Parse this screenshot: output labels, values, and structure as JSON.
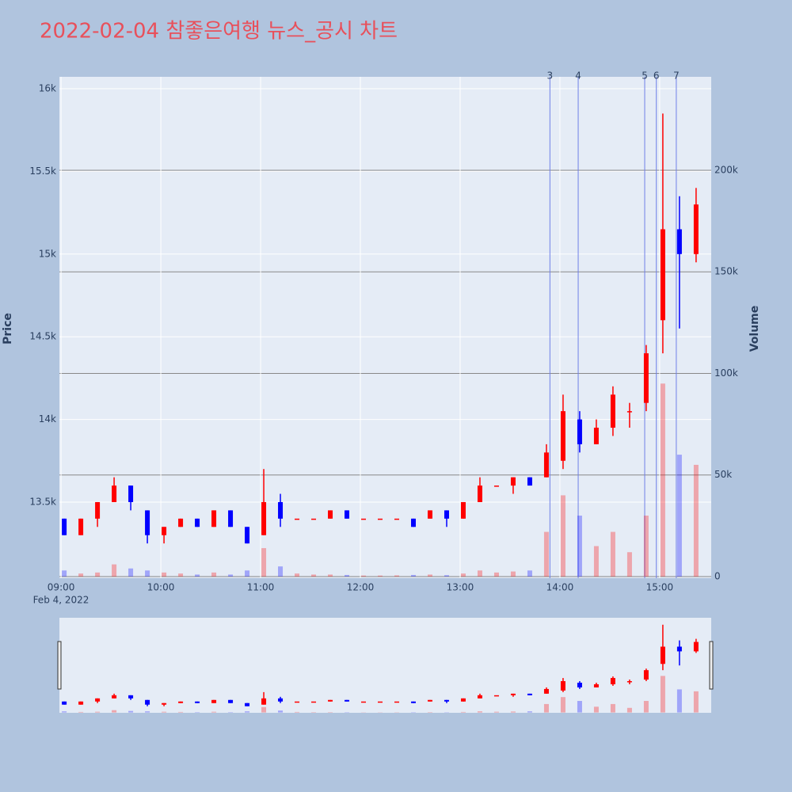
{
  "chart_data": {
    "type": "candlestick",
    "title": "2022-02-04 참좋은여행 뉴스_공시 차트",
    "y_label": "Price",
    "y2_label": "Volume",
    "x_date_label": "Feb 4, 2022",
    "x": [
      "09:00",
      "09:10",
      "09:20",
      "09:30",
      "09:40",
      "09:50",
      "10:00",
      "10:10",
      "10:20",
      "10:30",
      "10:40",
      "10:50",
      "11:00",
      "11:10",
      "11:20",
      "11:30",
      "11:40",
      "11:50",
      "12:00",
      "12:10",
      "12:20",
      "12:30",
      "12:40",
      "12:50",
      "13:00",
      "13:10",
      "13:20",
      "13:30",
      "13:40",
      "13:50",
      "14:00",
      "14:10",
      "14:20",
      "14:30",
      "14:40",
      "14:50",
      "15:00",
      "15:10",
      "15:20"
    ],
    "open": [
      13400,
      13300,
      13400,
      13500,
      13600,
      13450,
      13300,
      13350,
      13400,
      13350,
      13450,
      13350,
      13300,
      13500,
      13400,
      13400,
      13400,
      13450,
      13400,
      13400,
      13400,
      13400,
      13400,
      13450,
      13400,
      13500,
      13600,
      13600,
      13650,
      13650,
      13750,
      14000,
      13850,
      13950,
      14050,
      14100,
      14600,
      15150,
      15000
    ],
    "high": [
      13400,
      13400,
      13500,
      13650,
      13600,
      13450,
      13350,
      13400,
      13400,
      13450,
      13450,
      13350,
      13700,
      13550,
      13400,
      13400,
      13450,
      13450,
      13400,
      13400,
      13400,
      13400,
      13450,
      13450,
      13500,
      13650,
      13600,
      13650,
      13650,
      13850,
      14150,
      14050,
      14000,
      14200,
      14100,
      14450,
      15850,
      15350,
      15400
    ],
    "low": [
      13300,
      13300,
      13350,
      13500,
      13450,
      13250,
      13250,
      13350,
      13350,
      13350,
      13350,
      13250,
      13300,
      13350,
      13400,
      13400,
      13400,
      13400,
      13400,
      13400,
      13400,
      13350,
      13400,
      13350,
      13400,
      13500,
      13600,
      13550,
      13600,
      13650,
      13700,
      13800,
      13850,
      13900,
      13950,
      14050,
      14400,
      14550,
      14950
    ],
    "close": [
      13300,
      13400,
      13500,
      13600,
      13500,
      13300,
      13350,
      13400,
      13350,
      13450,
      13350,
      13250,
      13500,
      13400,
      13400,
      13400,
      13450,
      13400,
      13400,
      13400,
      13400,
      13350,
      13450,
      13400,
      13500,
      13600,
      13600,
      13650,
      13600,
      13800,
      14050,
      13850,
      13950,
      14150,
      14050,
      14400,
      15150,
      15000,
      15300
    ],
    "volume": [
      3000,
      1500,
      2000,
      6000,
      4000,
      3000,
      2000,
      1500,
      1000,
      2000,
      1000,
      3000,
      14000,
      5000,
      1500,
      1000,
      1000,
      800,
      500,
      500,
      600,
      800,
      1000,
      700,
      1500,
      3000,
      2000,
      2500,
      3000,
      22000,
      40000,
      30000,
      15000,
      22000,
      12000,
      30000,
      95000,
      60000,
      55000
    ],
    "increasing_color": "#ff0000",
    "decreasing_color": "#0000ff",
    "news": [
      {
        "x": "13:54",
        "label": "3"
      },
      {
        "x": "14:11",
        "label": "4"
      },
      {
        "x": "14:51",
        "label": "5"
      },
      {
        "x": "14:58",
        "label": "6"
      },
      {
        "x": "15:10",
        "label": "7"
      }
    ],
    "xlim": [
      "08:59",
      "15:31"
    ],
    "xticks": [
      "09:00",
      "10:00",
      "11:00",
      "12:00",
      "13:00",
      "14:00",
      "15:00"
    ],
    "ylim": [
      13040,
      16072
    ],
    "yticks": [
      {
        "value": 13500,
        "label": "13.5k"
      },
      {
        "value": 14000,
        "label": "14k"
      },
      {
        "value": 14500,
        "label": "14.5k"
      },
      {
        "value": 15000,
        "label": "15k"
      },
      {
        "value": 15500,
        "label": "15.5k"
      },
      {
        "value": 16000,
        "label": "16k"
      }
    ],
    "y2lim": [
      -780,
      246000
    ],
    "y2ticks": [
      0,
      {
        "value": 50000,
        "label": "50k"
      },
      {
        "value": 100000,
        "label": "100k"
      },
      {
        "value": 150000,
        "label": "150k"
      },
      {
        "value": 200000,
        "label": "200k"
      }
    ]
  }
}
